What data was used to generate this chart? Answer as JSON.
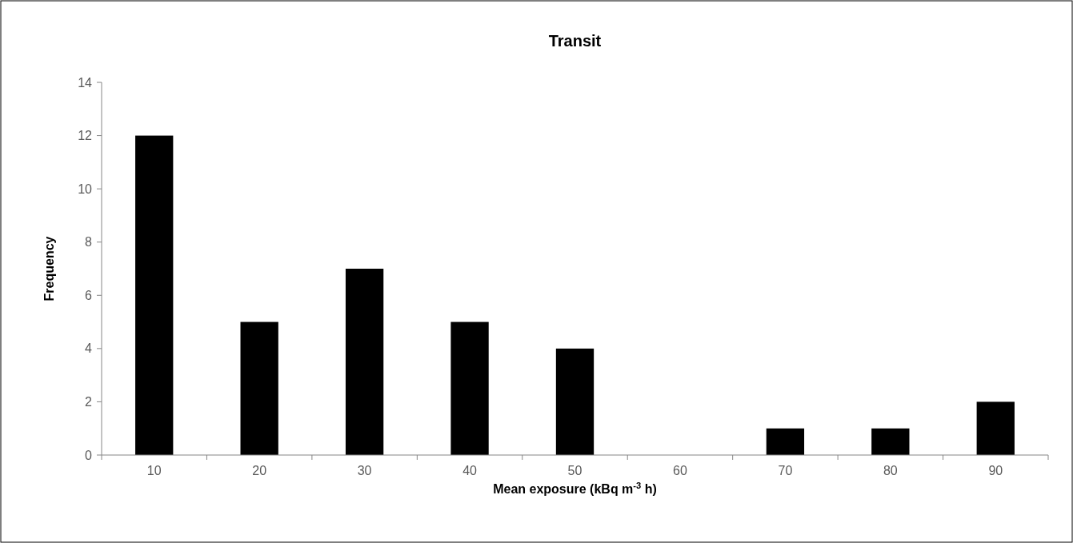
{
  "chart_data": {
    "type": "bar",
    "title": "Transit",
    "xlabel": "Mean exposure (kBq m$^{-3}$ h)",
    "ylabel": "Frequency",
    "categories": [
      "10",
      "20",
      "30",
      "40",
      "50",
      "60",
      "70",
      "80",
      "90"
    ],
    "values": [
      12,
      5,
      7,
      5,
      4,
      0,
      1,
      1,
      2
    ],
    "color": "#000000",
    "ylim": [
      0,
      14
    ],
    "yticks": [
      0,
      2,
      4,
      6,
      8,
      10,
      12,
      14
    ]
  }
}
